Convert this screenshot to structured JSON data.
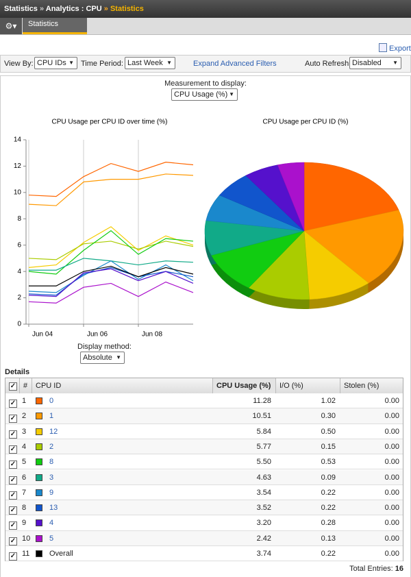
{
  "breadcrumb": [
    "Statistics",
    "Analytics : CPU",
    "Statistics"
  ],
  "tab": "Statistics",
  "export": "Export",
  "filters": {
    "view_by_label": "View By:",
    "view_by": "CPU IDs",
    "time_period_label": "Time Period:",
    "time_period": "Last Week",
    "advanced": "Expand Advanced Filters",
    "auto_refresh_label": "Auto Refresh",
    "auto_refresh": "Disabled"
  },
  "measurement": {
    "label": "Measurement to display:",
    "value": "CPU Usage (%)"
  },
  "chart_data": [
    {
      "type": "line",
      "title": "CPU Usage per CPU ID over time (%)",
      "categories": [
        "Jun 04",
        null,
        "Jun 06",
        null,
        "Jun 08",
        null,
        null
      ],
      "ylim": [
        0,
        14
      ],
      "yticks": [
        0,
        2,
        4,
        6,
        8,
        10,
        12,
        14
      ],
      "grid": "x",
      "series": [
        {
          "color": "#ff6600",
          "values": [
            9.8,
            9.7,
            11.2,
            12.2,
            11.6,
            12.3,
            12.1
          ]
        },
        {
          "color": "#ff9900",
          "values": [
            9.1,
            9.0,
            10.8,
            11.0,
            11.0,
            11.4,
            11.3
          ]
        },
        {
          "color": "#f5cc00",
          "values": [
            4.3,
            4.5,
            6.2,
            7.4,
            5.6,
            6.7,
            6.0
          ]
        },
        {
          "color": "#aacc00",
          "values": [
            5.0,
            4.9,
            6.1,
            6.3,
            5.7,
            6.3,
            5.9
          ]
        },
        {
          "color": "#11cc11",
          "values": [
            4.0,
            3.8,
            5.6,
            7.1,
            5.3,
            6.5,
            6.3
          ]
        },
        {
          "color": "#11aa88",
          "values": [
            4.1,
            4.1,
            5.0,
            4.8,
            4.5,
            4.8,
            4.7
          ]
        },
        {
          "color": "#1a88cc",
          "values": [
            2.5,
            2.4,
            3.7,
            4.8,
            3.4,
            4.5,
            3.3
          ]
        },
        {
          "color": "#1155cc",
          "values": [
            2.3,
            2.2,
            3.8,
            4.3,
            3.6,
            4.0,
            3.6
          ]
        },
        {
          "color": "#5511cc",
          "values": [
            2.2,
            2.1,
            3.9,
            4.2,
            3.3,
            4.0,
            3.1
          ]
        },
        {
          "color": "#aa11cc",
          "values": [
            1.7,
            1.6,
            2.8,
            3.1,
            2.1,
            3.2,
            2.4
          ]
        },
        {
          "color": "#000000",
          "values": [
            2.9,
            2.9,
            4.0,
            4.4,
            3.6,
            4.3,
            3.8
          ]
        }
      ]
    },
    {
      "type": "pie",
      "title": "CPU Usage per CPU ID (%)",
      "values": [
        11.28,
        10.51,
        5.84,
        5.77,
        5.5,
        4.63,
        3.54,
        3.52,
        3.2,
        2.42
      ],
      "colors": [
        "#ff6600",
        "#ff9900",
        "#f5cc00",
        "#aacc00",
        "#11cc11",
        "#11aa88",
        "#1a88cc",
        "#1155cc",
        "#5511cc",
        "#aa11cc"
      ]
    }
  ],
  "display_method": {
    "label": "Display method:",
    "value": "Absolute"
  },
  "details": {
    "title": "Details",
    "columns": [
      "#",
      "CPU ID",
      "CPU Usage (%)",
      "I/O (%)",
      "Stolen (%)"
    ],
    "colors": [
      "#ff6600",
      "#ff9900",
      "#f5cc00",
      "#aacc00",
      "#11cc11",
      "#11aa88",
      "#1a88cc",
      "#1155cc",
      "#5511cc",
      "#aa11cc",
      "#000000"
    ],
    "rows": [
      [
        "1",
        "0",
        "11.28",
        "1.02",
        "0.00"
      ],
      [
        "2",
        "1",
        "10.51",
        "0.30",
        "0.00"
      ],
      [
        "3",
        "12",
        "5.84",
        "0.50",
        "0.00"
      ],
      [
        "4",
        "2",
        "5.77",
        "0.15",
        "0.00"
      ],
      [
        "5",
        "8",
        "5.50",
        "0.53",
        "0.00"
      ],
      [
        "6",
        "3",
        "4.63",
        "0.09",
        "0.00"
      ],
      [
        "7",
        "9",
        "3.54",
        "0.22",
        "0.00"
      ],
      [
        "8",
        "13",
        "3.52",
        "0.22",
        "0.00"
      ],
      [
        "9",
        "4",
        "3.20",
        "0.28",
        "0.00"
      ],
      [
        "10",
        "5",
        "2.42",
        "0.13",
        "0.00"
      ],
      [
        "11",
        "Overall",
        "3.74",
        "0.22",
        "0.00"
      ]
    ],
    "total_label": "Total Entries:",
    "total": "16"
  }
}
